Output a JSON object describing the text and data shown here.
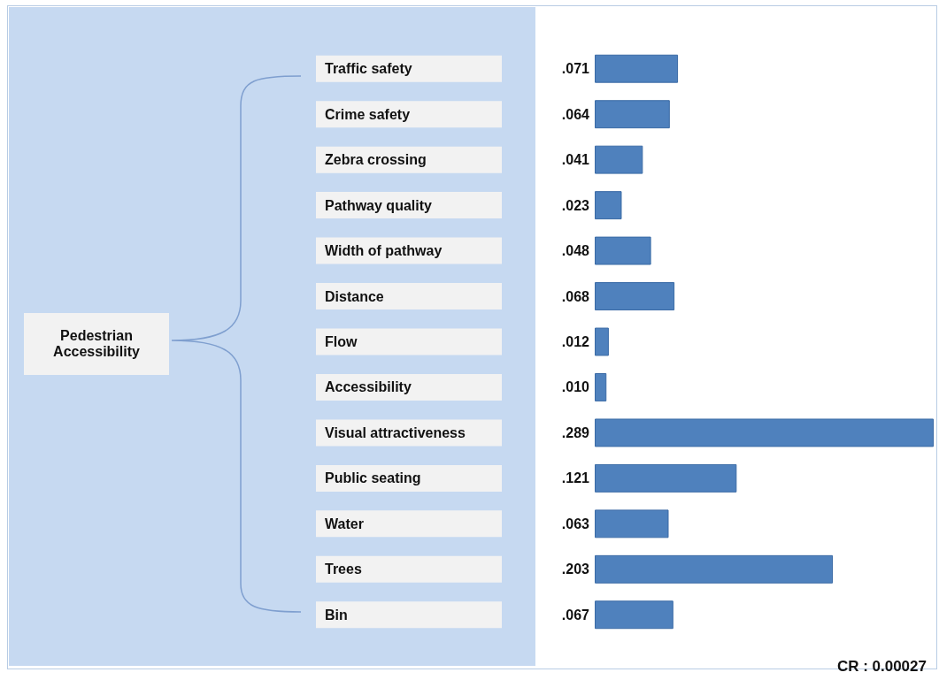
{
  "chart_data": {
    "type": "bar",
    "orientation": "horizontal",
    "categories": [
      "Traffic safety",
      "Crime safety",
      "Zebra crossing",
      "Pathway quality",
      "Width of pathway",
      "Distance",
      "Flow",
      "Accessibility",
      "Visual attractiveness",
      "Public seating",
      "Water",
      "Trees",
      "Bin"
    ],
    "values": [
      0.071,
      0.064,
      0.041,
      0.023,
      0.048,
      0.068,
      0.012,
      0.01,
      0.289,
      0.121,
      0.063,
      0.203,
      0.067
    ],
    "value_labels": [
      ".071",
      ".064",
      ".041",
      ".023",
      ".048",
      ".068",
      ".012",
      ".010",
      ".289",
      ".121",
      ".063",
      ".203",
      ".067"
    ],
    "color": "#4f81bd",
    "xlim": [
      0,
      0.289
    ],
    "tick_labels": "y",
    "grid": false,
    "annotations": [
      "Pedestrian Accessibility",
      "CR : 0.00027"
    ]
  }
}
